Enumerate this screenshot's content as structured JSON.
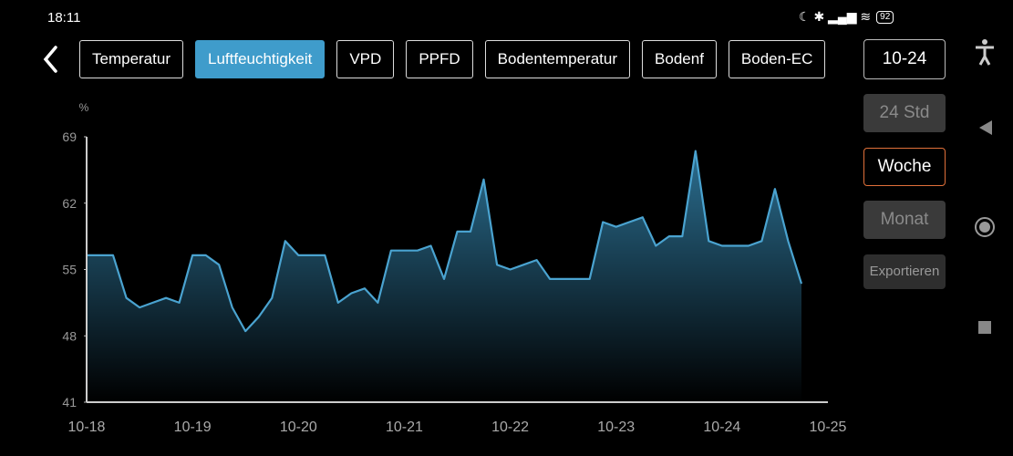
{
  "status": {
    "time": "18:11",
    "battery": "92"
  },
  "tabs": {
    "items": [
      "Temperatur",
      "Luftfeuchtigkeit",
      "VPD",
      "PPFD",
      "Bodentemperatur",
      "Bodenf",
      "Boden-EC"
    ],
    "active": 1
  },
  "date_button": "10-24",
  "range": {
    "items": [
      "24 Std",
      "Woche",
      "Monat"
    ],
    "selected": 1
  },
  "export_button": "Exportieren",
  "chart_data": {
    "type": "area",
    "y_label": "%",
    "categories": [
      "10-18",
      null,
      null,
      null,
      null,
      null,
      null,
      null,
      "10-19",
      null,
      null,
      null,
      null,
      null,
      null,
      null,
      "10-20",
      null,
      null,
      null,
      null,
      null,
      null,
      null,
      "10-21",
      null,
      null,
      null,
      null,
      null,
      null,
      null,
      "10-22",
      null,
      null,
      null,
      null,
      null,
      null,
      null,
      "10-23",
      null,
      null,
      null,
      null,
      null,
      null,
      null,
      "10-24",
      null,
      null,
      null,
      null,
      null,
      null,
      null,
      "10-25"
    ],
    "series": [
      {
        "name": "Luftfeuchtigkeit",
        "color": "#4aa3d0",
        "values": [
          56.5,
          56.5,
          56.5,
          52,
          51,
          51.5,
          52,
          51.5,
          56.5,
          56.5,
          55.5,
          51,
          48.5,
          50,
          52,
          58,
          56.5,
          56.5,
          56.5,
          51.5,
          52.5,
          53,
          51.5,
          57,
          57,
          57,
          57.5,
          54,
          59,
          59,
          64.5,
          55.5,
          55,
          55.5,
          56,
          54,
          54,
          54,
          54,
          60,
          59.5,
          60,
          60.5,
          57.5,
          58.5,
          58.5,
          67.5,
          58,
          57.5,
          57.5,
          57.5,
          58,
          63.5,
          58,
          53.5,
          null,
          null
        ]
      }
    ],
    "ylim": [
      41,
      69
    ],
    "yticks": [
      41,
      48,
      55,
      62,
      69
    ]
  }
}
